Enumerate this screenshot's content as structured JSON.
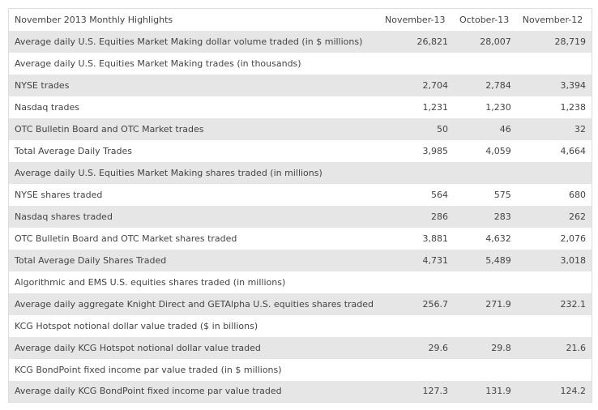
{
  "table": {
    "header": [
      "November 2013 Monthly Highlights",
      "November-13",
      "October-13",
      "November-12"
    ],
    "rows": [
      {
        "label": "Average daily U.S. Equities Market Making dollar volume traded (in $ millions)",
        "values": [
          "26,821",
          "28,007",
          "28,719"
        ]
      },
      {
        "label": "Average daily U.S. Equities Market Making trades (in thousands)"
      },
      {
        "label": "NYSE trades",
        "values": [
          "2,704",
          "2,784",
          "3,394"
        ]
      },
      {
        "label": "Nasdaq trades",
        "values": [
          "1,231",
          "1,230",
          "1,238"
        ]
      },
      {
        "label": "OTC Bulletin Board and OTC Market trades",
        "values": [
          "50",
          "46",
          "32"
        ]
      },
      {
        "label": "Total Average Daily Trades",
        "values": [
          "3,985",
          "4,059",
          "4,664"
        ]
      },
      {
        "label": "Average daily U.S. Equities Market Making shares traded (in millions)"
      },
      {
        "label": "NYSE shares traded",
        "values": [
          "564",
          "575",
          "680"
        ]
      },
      {
        "label": "Nasdaq shares traded",
        "values": [
          "286",
          "283",
          "262"
        ]
      },
      {
        "label": "OTC Bulletin Board and OTC Market shares traded",
        "values": [
          "3,881",
          "4,632",
          "2,076"
        ]
      },
      {
        "label": "Total Average Daily Shares Traded",
        "values": [
          "4,731",
          "5,489",
          "3,018"
        ]
      },
      {
        "label": "Algorithmic and EMS U.S. equities shares traded (in millions)"
      },
      {
        "label": "Average daily aggregate Knight Direct and GETAlpha U.S. equities shares traded",
        "values": [
          "256.7",
          "271.9",
          "232.1"
        ]
      },
      {
        "label": "KCG Hotspot notional dollar value traded ($ in billions)"
      },
      {
        "label": "Average daily KCG Hotspot notional dollar value traded",
        "values": [
          "29.6",
          "29.8",
          "21.6"
        ]
      },
      {
        "label": "KCG BondPoint fixed income par value traded (in $ millions)"
      },
      {
        "label": "Average daily KCG BondPoint fixed income par value traded",
        "values": [
          "127.3",
          "131.9",
          "124.2"
        ]
      }
    ]
  }
}
